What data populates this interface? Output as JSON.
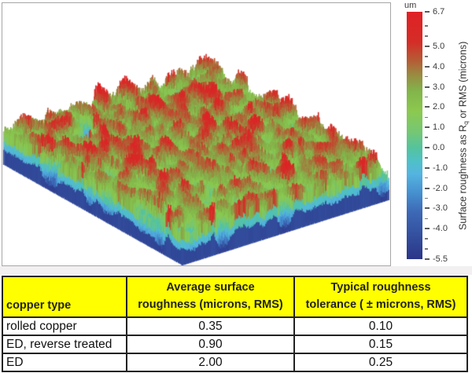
{
  "figure": {
    "unit_label": "um",
    "axis_label": {
      "pre": "Surface roughness as R",
      "sub": "q",
      "post": " or RMS (microns)"
    },
    "scale": {
      "max": 6.7,
      "min": -5.5
    },
    "major_ticks": [
      {
        "value": 6.7,
        "label": "6.7"
      },
      {
        "value": 5.0,
        "label": "5.0"
      },
      {
        "value": 4.0,
        "label": "4.0"
      },
      {
        "value": 3.0,
        "label": "3.0"
      },
      {
        "value": 2.0,
        "label": "2.0"
      },
      {
        "value": 1.0,
        "label": "1.0"
      },
      {
        "value": 0.0,
        "label": "0.0"
      },
      {
        "value": -1.0,
        "label": "-1.0"
      },
      {
        "value": -2.0,
        "label": "-2.0"
      },
      {
        "value": -3.0,
        "label": "-3.0"
      },
      {
        "value": -4.0,
        "label": "-4.0"
      },
      {
        "value": -5.5,
        "label": "-5.5"
      }
    ],
    "minor_ticks": [
      6.0,
      5.5,
      4.5,
      3.5,
      2.5,
      1.5,
      0.5,
      -0.5,
      -1.5,
      -2.5,
      -3.5,
      -4.5,
      -5.0
    ],
    "colormap_stops": [
      {
        "v": 6.7,
        "c": "#e02126"
      },
      {
        "v": 5.2,
        "c": "#d42d27"
      },
      {
        "v": 4.3,
        "c": "#b55c35"
      },
      {
        "v": 3.6,
        "c": "#9a8a41"
      },
      {
        "v": 2.8,
        "c": "#82b44b"
      },
      {
        "v": 1.8,
        "c": "#8cc94f"
      },
      {
        "v": 0.8,
        "c": "#76c773"
      },
      {
        "v": 0.0,
        "c": "#55c39d"
      },
      {
        "v": -0.7,
        "c": "#4fc0c9"
      },
      {
        "v": -1.3,
        "c": "#55b4e0"
      },
      {
        "v": -2.2,
        "c": "#4691d0"
      },
      {
        "v": -3.2,
        "c": "#3d68b5"
      },
      {
        "v": -4.3,
        "c": "#34509f"
      },
      {
        "v": -5.5,
        "c": "#2c3588"
      }
    ]
  },
  "table": {
    "header_bg": "#ffff00",
    "headers": [
      {
        "lines": [
          "copper type"
        ]
      },
      {
        "lines": [
          "Average surface",
          "roughness (microns, RMS)"
        ]
      },
      {
        "lines": [
          "Typical roughness",
          "tolerance ( ± microns, RMS)"
        ]
      }
    ],
    "rows": [
      [
        "rolled copper",
        "0.35",
        "0.10"
      ],
      [
        "ED, reverse treated",
        "0.90",
        "0.15"
      ],
      [
        "ED",
        "2.00",
        "0.25"
      ]
    ]
  },
  "chart_data": [
    {
      "type": "heatmap",
      "subtype": "3d-surface-roughness-map",
      "title": "",
      "z_unit": "um",
      "z_label": "Surface roughness as Rq or RMS (microns)",
      "z_range": [
        -5.5,
        6.7
      ],
      "colorbar_major_ticks": [
        6.7,
        5.0,
        4.0,
        3.0,
        2.0,
        1.0,
        0.0,
        -1.0,
        -2.0,
        -3.0,
        -4.0,
        -5.5
      ],
      "legend_position": "right",
      "description": "Perspective pseudocolor 3D spike map of copper foil surface roughness: red peaks near +6.7 um, green mid-level texture, blue/navy pits down to -5.5 um, rendered as a tilted rectangular slab on white background"
    },
    {
      "type": "table",
      "columns": [
        "copper type",
        "Average surface roughness (microns, RMS)",
        "Typical roughness tolerance ( ± microns, RMS)"
      ],
      "rows": [
        [
          "rolled copper",
          0.35,
          0.1
        ],
        [
          "ED, reverse treated",
          0.9,
          0.15
        ],
        [
          "ED",
          2.0,
          0.25
        ]
      ]
    }
  ]
}
